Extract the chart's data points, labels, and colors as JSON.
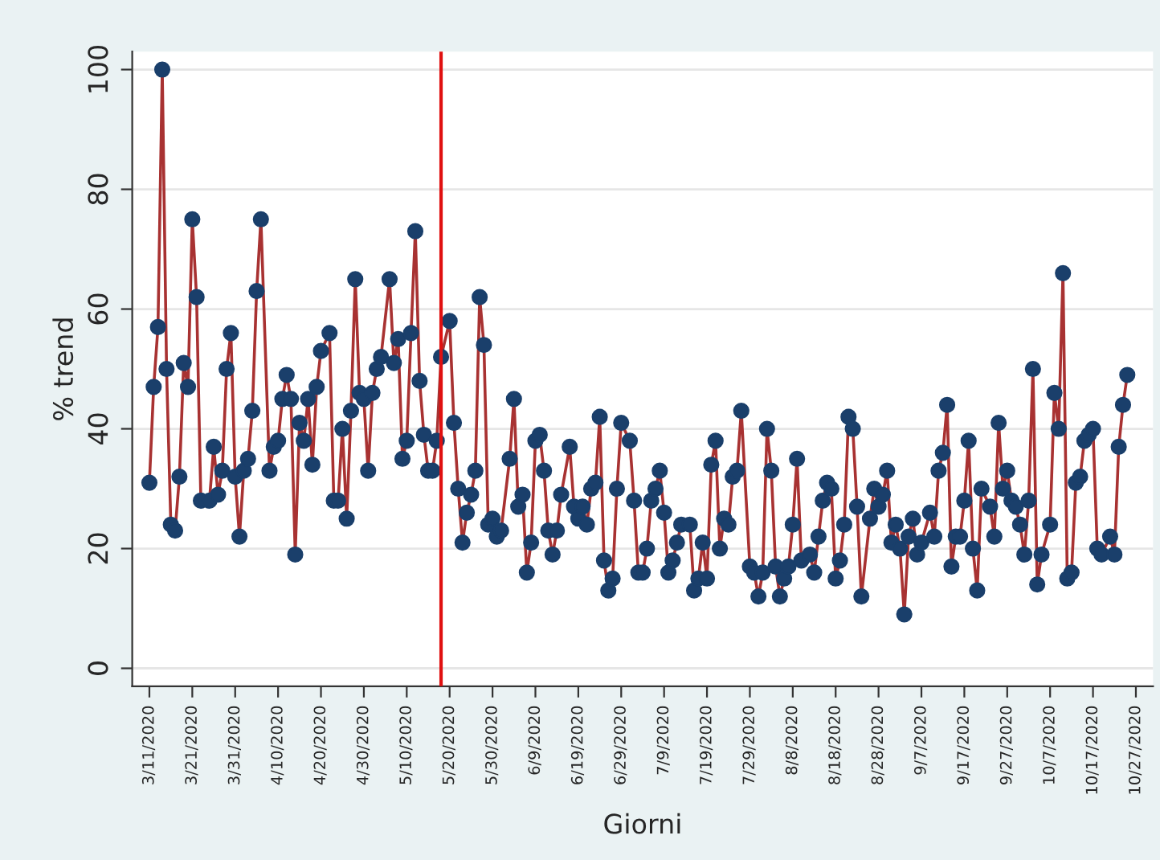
{
  "chart_data": {
    "type": "line",
    "xlabel": "Giorni",
    "ylabel": "% trend",
    "x": [
      "2020-03-11",
      "2020-03-12",
      "2020-03-13",
      "2020-03-14",
      "2020-03-15",
      "2020-03-16",
      "2020-03-17",
      "2020-03-18",
      "2020-03-19",
      "2020-03-20",
      "2020-03-21",
      "2020-03-22",
      "2020-03-23",
      "2020-03-25",
      "2020-03-26",
      "2020-03-27",
      "2020-03-28",
      "2020-03-29",
      "2020-03-30",
      "2020-03-31",
      "2020-04-01",
      "2020-04-02",
      "2020-04-03",
      "2020-04-04",
      "2020-04-05",
      "2020-04-06",
      "2020-04-08",
      "2020-04-09",
      "2020-04-10",
      "2020-04-11",
      "2020-04-12",
      "2020-04-13",
      "2020-04-14",
      "2020-04-15",
      "2020-04-16",
      "2020-04-17",
      "2020-04-18",
      "2020-04-19",
      "2020-04-20",
      "2020-04-22",
      "2020-04-23",
      "2020-04-24",
      "2020-04-25",
      "2020-04-26",
      "2020-04-27",
      "2020-04-28",
      "2020-04-29",
      "2020-04-30",
      "2020-05-01",
      "2020-05-02",
      "2020-05-03",
      "2020-05-04",
      "2020-05-06",
      "2020-05-07",
      "2020-05-08",
      "2020-05-09",
      "2020-05-10",
      "2020-05-11",
      "2020-05-12",
      "2020-05-13",
      "2020-05-14",
      "2020-05-15",
      "2020-05-16",
      "2020-05-17",
      "2020-05-18",
      "2020-05-20",
      "2020-05-21",
      "2020-05-22",
      "2020-05-23",
      "2020-05-24",
      "2020-05-25",
      "2020-05-26",
      "2020-05-27",
      "2020-05-28",
      "2020-05-29",
      "2020-05-30",
      "2020-05-31",
      "2020-06-01",
      "2020-06-03",
      "2020-06-04",
      "2020-06-05",
      "2020-06-06",
      "2020-06-07",
      "2020-06-08",
      "2020-06-09",
      "2020-06-10",
      "2020-06-11",
      "2020-06-12",
      "2020-06-13",
      "2020-06-14",
      "2020-06-15",
      "2020-06-17",
      "2020-06-18",
      "2020-06-19",
      "2020-06-20",
      "2020-06-21",
      "2020-06-22",
      "2020-06-23",
      "2020-06-24",
      "2020-06-25",
      "2020-06-26",
      "2020-06-27",
      "2020-06-28",
      "2020-06-29",
      "2020-07-01",
      "2020-07-02",
      "2020-07-03",
      "2020-07-04",
      "2020-07-05",
      "2020-07-06",
      "2020-07-07",
      "2020-07-08",
      "2020-07-09",
      "2020-07-10",
      "2020-07-11",
      "2020-07-12",
      "2020-07-13",
      "2020-07-15",
      "2020-07-16",
      "2020-07-17",
      "2020-07-18",
      "2020-07-19",
      "2020-07-20",
      "2020-07-21",
      "2020-07-22",
      "2020-07-23",
      "2020-07-24",
      "2020-07-25",
      "2020-07-26",
      "2020-07-27",
      "2020-07-29",
      "2020-07-30",
      "2020-07-31",
      "2020-08-01",
      "2020-08-02",
      "2020-08-03",
      "2020-08-04",
      "2020-08-05",
      "2020-08-06",
      "2020-08-07",
      "2020-08-08",
      "2020-08-09",
      "2020-08-10",
      "2020-08-12",
      "2020-08-13",
      "2020-08-14",
      "2020-08-15",
      "2020-08-16",
      "2020-08-17",
      "2020-08-18",
      "2020-08-19",
      "2020-08-20",
      "2020-08-21",
      "2020-08-22",
      "2020-08-23",
      "2020-08-24",
      "2020-08-26",
      "2020-08-27",
      "2020-08-28",
      "2020-08-29",
      "2020-08-30",
      "2020-08-31",
      "2020-09-01",
      "2020-09-02",
      "2020-09-03",
      "2020-09-04",
      "2020-09-05",
      "2020-09-06",
      "2020-09-07",
      "2020-09-09",
      "2020-09-10",
      "2020-09-11",
      "2020-09-12",
      "2020-09-13",
      "2020-09-14",
      "2020-09-15",
      "2020-09-16",
      "2020-09-17",
      "2020-09-18",
      "2020-09-19",
      "2020-09-20",
      "2020-09-21",
      "2020-09-23",
      "2020-09-24",
      "2020-09-25",
      "2020-09-26",
      "2020-09-27",
      "2020-09-28",
      "2020-09-29",
      "2020-09-30",
      "2020-10-01",
      "2020-10-02",
      "2020-10-03",
      "2020-10-04",
      "2020-10-05",
      "2020-10-07",
      "2020-10-08",
      "2020-10-09",
      "2020-10-10",
      "2020-10-11",
      "2020-10-12",
      "2020-10-13",
      "2020-10-14",
      "2020-10-15",
      "2020-10-16",
      "2020-10-17",
      "2020-10-18",
      "2020-10-19",
      "2020-10-21",
      "2020-10-22",
      "2020-10-23",
      "2020-10-24",
      "2020-10-25"
    ],
    "series": [
      {
        "color": "#a83232",
        "values": [
          31,
          47,
          57,
          100,
          50,
          24,
          23,
          32,
          51,
          47,
          75,
          62,
          28,
          28,
          37,
          29,
          33,
          50,
          56,
          32,
          22,
          33,
          35,
          43,
          63,
          75,
          33,
          37,
          38,
          45,
          49,
          45,
          19,
          41,
          38,
          45,
          34,
          47,
          53,
          56,
          28,
          28,
          40,
          25,
          43,
          65,
          46,
          45,
          33,
          46,
          50,
          52,
          65,
          51,
          55,
          35,
          38,
          56,
          73,
          48,
          39,
          33,
          33,
          38,
          52,
          58,
          41,
          30,
          21,
          26,
          29,
          33,
          62,
          54,
          24,
          25,
          22,
          23,
          35,
          45,
          27,
          29,
          16,
          21,
          38,
          39,
          33,
          23,
          19,
          23,
          29,
          37,
          27,
          25,
          27,
          24,
          30,
          31,
          42,
          18,
          13,
          15,
          30,
          41,
          38,
          28,
          16,
          16,
          20,
          28,
          30,
          33,
          26,
          16,
          18,
          21,
          24,
          24,
          13,
          15,
          21,
          15,
          34,
          38,
          20,
          25,
          24,
          32,
          33,
          43,
          17,
          16,
          12,
          16,
          40,
          33,
          17,
          12,
          15,
          17,
          24,
          35,
          18,
          19,
          16,
          22,
          28,
          31,
          30,
          15,
          18,
          24,
          42,
          40,
          27,
          12,
          25,
          30,
          27,
          29,
          33,
          21,
          24,
          20,
          9,
          22,
          25,
          19,
          21,
          26,
          22,
          33,
          36,
          44,
          17,
          22,
          22,
          28,
          38,
          20,
          13,
          30,
          27,
          22,
          41,
          30,
          33,
          28,
          27,
          24,
          19,
          28,
          50,
          14,
          19,
          24,
          46,
          40,
          66,
          15,
          16,
          31,
          32,
          38,
          39,
          40,
          20,
          19,
          22,
          19,
          37,
          44,
          49
        ]
      }
    ],
    "xlim": [
      "2020-03-07",
      "2020-10-31"
    ],
    "xticks": [
      {
        "value": "2020-03-11",
        "label": "3/11/2020"
      },
      {
        "value": "2020-03-21",
        "label": "3/21/2020"
      },
      {
        "value": "2020-03-31",
        "label": "3/31/2020"
      },
      {
        "value": "2020-04-10",
        "label": "4/10/2020"
      },
      {
        "value": "2020-04-20",
        "label": "4/20/2020"
      },
      {
        "value": "2020-04-30",
        "label": "4/30/2020"
      },
      {
        "value": "2020-05-10",
        "label": "5/10/2020"
      },
      {
        "value": "2020-05-20",
        "label": "5/20/2020"
      },
      {
        "value": "2020-05-30",
        "label": "5/30/2020"
      },
      {
        "value": "2020-06-09",
        "label": "6/9/2020"
      },
      {
        "value": "2020-06-19",
        "label": "6/19/2020"
      },
      {
        "value": "2020-06-29",
        "label": "6/29/2020"
      },
      {
        "value": "2020-07-09",
        "label": "7/9/2020"
      },
      {
        "value": "2020-07-19",
        "label": "7/19/2020"
      },
      {
        "value": "2020-07-29",
        "label": "7/29/2020"
      },
      {
        "value": "2020-08-08",
        "label": "8/8/2020"
      },
      {
        "value": "2020-08-18",
        "label": "8/18/2020"
      },
      {
        "value": "2020-08-28",
        "label": "8/28/2020"
      },
      {
        "value": "2020-09-07",
        "label": "9/7/2020"
      },
      {
        "value": "2020-09-17",
        "label": "9/17/2020"
      },
      {
        "value": "2020-09-27",
        "label": "9/27/2020"
      },
      {
        "value": "2020-10-07",
        "label": "10/7/2020"
      },
      {
        "value": "2020-10-17",
        "label": "10/17/2020"
      },
      {
        "value": "2020-10-27",
        "label": "10/27/2020"
      }
    ],
    "ylim": [
      -3,
      103
    ],
    "yticks": [
      0,
      20,
      40,
      60,
      80,
      100
    ],
    "ref_lines": [
      {
        "axis": "x",
        "value": "2020-05-18",
        "color": "#e01010"
      }
    ],
    "grid": "y",
    "marker": "circle",
    "line_style": "solid"
  }
}
